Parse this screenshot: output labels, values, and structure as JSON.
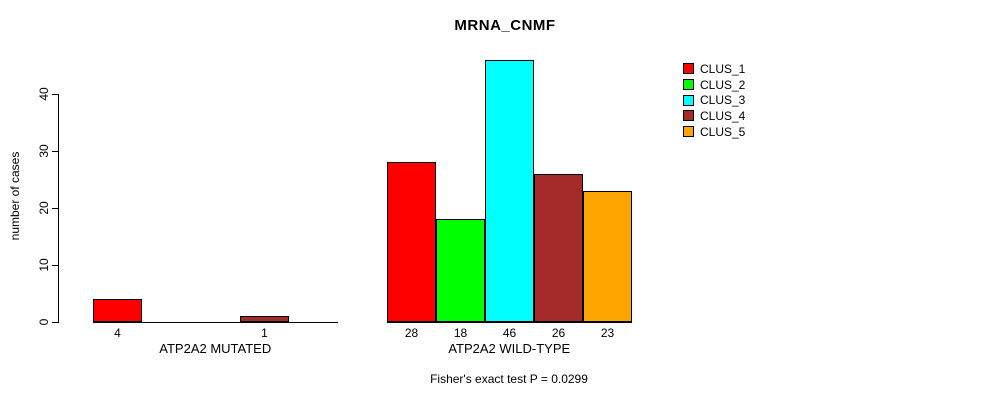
{
  "chart_data": {
    "type": "bar",
    "title": "MRNA_CNMF",
    "ylabel": "number of cases",
    "xlabel": "",
    "annotation": "Fisher's exact test P = 0.0299",
    "yticks": [
      0,
      10,
      20,
      30,
      40
    ],
    "ylim": [
      0,
      46
    ],
    "grid": false,
    "legend_position": "top-right",
    "categories": [
      "ATP2A2 MUTATED",
      "ATP2A2 WILD-TYPE"
    ],
    "series": [
      {
        "name": "CLUS_1",
        "color": "#ff0000",
        "values": [
          4,
          28
        ]
      },
      {
        "name": "CLUS_2",
        "color": "#00ff00",
        "values": [
          0,
          18
        ]
      },
      {
        "name": "CLUS_3",
        "color": "#00ffff",
        "values": [
          0,
          46
        ]
      },
      {
        "name": "CLUS_4",
        "color": "#a52a2a",
        "values": [
          1,
          26
        ]
      },
      {
        "name": "CLUS_5",
        "color": "#ffa500",
        "values": [
          0,
          23
        ]
      }
    ],
    "value_labels": {
      "ATP2A2 MUTATED": [
        "4",
        "",
        "",
        "1",
        ""
      ],
      "ATP2A2 WILD-TYPE": [
        "28",
        "18",
        "46",
        "26",
        "23"
      ]
    }
  }
}
